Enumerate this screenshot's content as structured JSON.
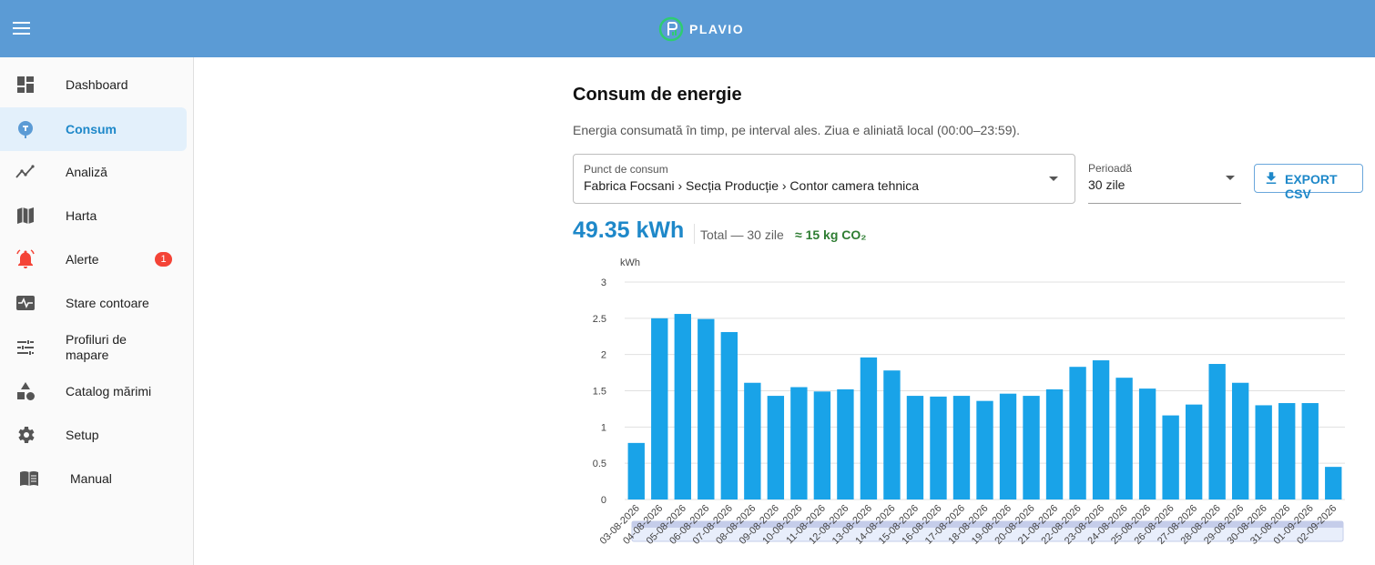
{
  "app": {
    "brand": "PLAVIO"
  },
  "sidebar": {
    "items": [
      {
        "label": "Dashboard",
        "icon": "dashboard-icon"
      },
      {
        "label": "Consum",
        "icon": "meter-icon",
        "active": true
      },
      {
        "label": "Analiză",
        "icon": "analytics-icon"
      },
      {
        "label": "Harta",
        "icon": "map-icon"
      },
      {
        "label": "Alerte",
        "icon": "bell-icon",
        "badge": "1"
      },
      {
        "label": "Stare contoare",
        "icon": "monitor-heart-icon"
      },
      {
        "label": "Profiluri de mapare",
        "icon": "tune-icon"
      },
      {
        "label": "Catalog mărimi",
        "icon": "shapes-icon"
      },
      {
        "label": "Setup",
        "icon": "gear-icon"
      },
      {
        "label": "Manual",
        "icon": "book-icon"
      }
    ]
  },
  "page": {
    "title": "Consum de energie",
    "subtitle": "Energia consumată în timp, pe interval ales. Ziua e aliniată local (00:00–23:59).",
    "consumption_point": {
      "label": "Punct de consum",
      "value": "Fabrica Focsani › Secția Producție › Contor camera tehnica"
    },
    "period": {
      "label": "Perioadă",
      "value": "30 zile"
    },
    "export_label": "EXPORT CSV",
    "total": {
      "value": "49.35 kWh",
      "label": "Total — 30 zile",
      "co2": "≈ 15 kg CO₂"
    }
  },
  "colors": {
    "appbar": "#5b9bd5",
    "accent": "#1e88c9",
    "bar": "#19a3e8",
    "co2": "#2e7d32",
    "badge": "#f44336"
  },
  "chart_data": {
    "type": "bar",
    "ylabel": "kWh",
    "ylim": [
      0,
      3
    ],
    "yticks": [
      "0",
      "0.5",
      "1",
      "1.5",
      "2",
      "2.5",
      "3"
    ],
    "grid": true,
    "categories": [
      "03-08-2026",
      "04-08-2026",
      "05-08-2026",
      "06-08-2026",
      "07-08-2026",
      "08-08-2026",
      "09-08-2026",
      "10-08-2026",
      "11-08-2026",
      "12-08-2026",
      "13-08-2026",
      "14-08-2026",
      "15-08-2026",
      "16-08-2026",
      "17-08-2026",
      "18-08-2026",
      "19-08-2026",
      "20-08-2026",
      "21-08-2026",
      "22-08-2026",
      "23-08-2026",
      "24-08-2026",
      "25-08-2026",
      "26-08-2026",
      "27-08-2026",
      "28-08-2026",
      "29-08-2026",
      "30-08-2026",
      "31-08-2026",
      "01-09-2026",
      "02-09-2026"
    ],
    "values": [
      0.78,
      2.5,
      2.56,
      2.49,
      2.31,
      1.61,
      1.43,
      1.55,
      1.49,
      1.52,
      1.96,
      1.78,
      1.43,
      1.42,
      1.43,
      1.36,
      1.46,
      1.43,
      1.52,
      1.83,
      1.92,
      1.68,
      1.53,
      1.16,
      1.31,
      1.87,
      1.61,
      1.3,
      1.33,
      1.33,
      0.45
    ]
  }
}
